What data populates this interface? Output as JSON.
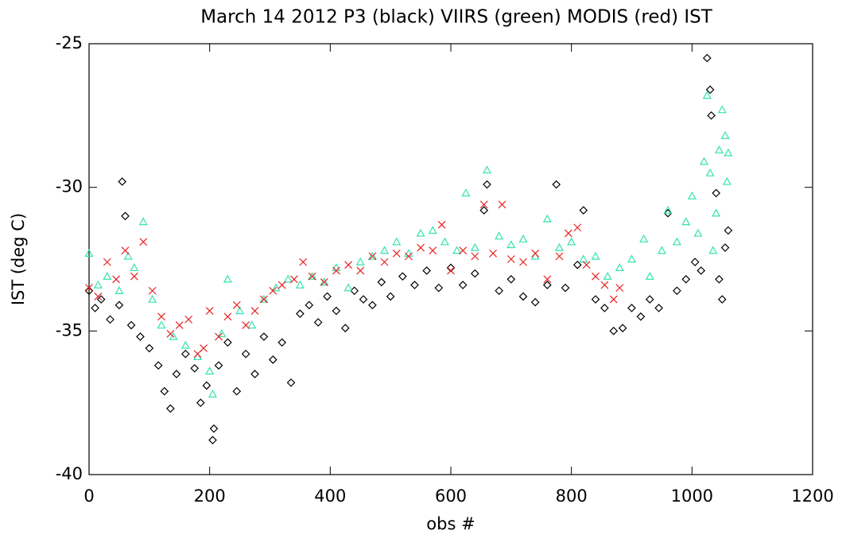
{
  "chart_data": {
    "type": "scatter",
    "title": "March 14 2012 P3 (black)   VIIRS (green)   MODIS (red)   IST",
    "x_label": "obs #",
    "y_label": "IST (deg C)",
    "xlim": [
      0,
      1200
    ],
    "ylim": [
      -40,
      -25
    ],
    "xticks": [
      0,
      200,
      400,
      600,
      800,
      1000,
      1200
    ],
    "yticks": [
      -40,
      -35,
      -30,
      -25
    ],
    "series": [
      {
        "name": "P3",
        "color": "#000000",
        "marker": "diamond",
        "x": [
          0,
          10,
          20,
          35,
          50,
          55,
          60,
          70,
          85,
          100,
          115,
          125,
          135,
          145,
          160,
          175,
          185,
          195,
          205,
          207,
          215,
          230,
          245,
          260,
          275,
          290,
          305,
          320,
          335,
          350,
          365,
          380,
          395,
          410,
          425,
          440,
          455,
          470,
          485,
          500,
          520,
          540,
          560,
          580,
          600,
          620,
          640,
          655,
          660,
          680,
          700,
          720,
          740,
          760,
          775,
          790,
          810,
          820,
          840,
          855,
          870,
          885,
          900,
          915,
          930,
          945,
          960,
          975,
          990,
          1005,
          1015,
          1025,
          1030,
          1032,
          1040,
          1045,
          1050,
          1055,
          1060
        ],
        "values": [
          -33.6,
          -34.2,
          -33.9,
          -34.6,
          -34.1,
          -29.8,
          -31,
          -34.8,
          -35.2,
          -35.6,
          -36.2,
          -37.1,
          -37.7,
          -36.5,
          -35.8,
          -36.3,
          -37.5,
          -36.9,
          -38.8,
          -38.4,
          -36.2,
          -35.4,
          -37.1,
          -35.8,
          -36.5,
          -35.2,
          -36,
          -35.4,
          -36.8,
          -34.4,
          -34.1,
          -34.7,
          -33.8,
          -34.3,
          -34.9,
          -33.6,
          -33.9,
          -34.1,
          -33.3,
          -33.8,
          -33.1,
          -33.4,
          -32.9,
          -33.5,
          -32.8,
          -33.4,
          -33,
          -30.8,
          -29.9,
          -33.6,
          -33.2,
          -33.8,
          -34,
          -33.4,
          -29.9,
          -33.5,
          -32.7,
          -30.8,
          -33.9,
          -34.2,
          -35,
          -34.9,
          -34.2,
          -34.5,
          -33.9,
          -34.2,
          -30.9,
          -33.6,
          -33.2,
          -32.6,
          -32.9,
          -25.5,
          -26.6,
          -27.5,
          -30.2,
          -33.2,
          -33.9,
          -32.1,
          -31.5
        ]
      },
      {
        "name": "VIIRS",
        "color": "#33e3b0",
        "marker": "triangle",
        "x": [
          0,
          15,
          30,
          50,
          65,
          75,
          90,
          105,
          120,
          140,
          160,
          180,
          200,
          205,
          220,
          230,
          250,
          270,
          290,
          310,
          330,
          350,
          370,
          390,
          410,
          430,
          450,
          470,
          490,
          510,
          530,
          550,
          570,
          590,
          610,
          625,
          640,
          660,
          680,
          700,
          720,
          740,
          760,
          780,
          800,
          820,
          840,
          860,
          880,
          900,
          920,
          930,
          950,
          960,
          975,
          990,
          1000,
          1010,
          1020,
          1025,
          1030,
          1035,
          1040,
          1045,
          1050,
          1055,
          1058,
          1060
        ],
        "values": [
          -32.3,
          -33.4,
          -33.1,
          -33.6,
          -32.4,
          -32.8,
          -31.2,
          -33.9,
          -34.8,
          -35.2,
          -35.5,
          -35.9,
          -36.4,
          -37.2,
          -35.1,
          -33.2,
          -34.3,
          -34.8,
          -33.9,
          -33.5,
          -33.2,
          -33.4,
          -33.1,
          -33.3,
          -32.8,
          -33.5,
          -32.6,
          -32.4,
          -32.2,
          -31.9,
          -32.3,
          -31.6,
          -31.5,
          -31.9,
          -32.2,
          -30.2,
          -32.1,
          -29.4,
          -31.7,
          -32,
          -31.8,
          -32.4,
          -31.1,
          -32.1,
          -31.9,
          -32.5,
          -32.4,
          -33.1,
          -32.8,
          -32.5,
          -31.8,
          -33.1,
          -32.2,
          -30.8,
          -31.9,
          -31.2,
          -30.3,
          -31.6,
          -29.1,
          -26.8,
          -29.5,
          -32.2,
          -30.9,
          -28.7,
          -27.3,
          -28.2,
          -29.8,
          -28.8
        ]
      },
      {
        "name": "MODIS",
        "color": "#e82222",
        "marker": "cross",
        "x": [
          0,
          15,
          30,
          45,
          60,
          75,
          90,
          105,
          120,
          135,
          150,
          165,
          180,
          190,
          200,
          215,
          230,
          245,
          260,
          275,
          290,
          305,
          320,
          340,
          355,
          370,
          390,
          410,
          430,
          450,
          470,
          490,
          510,
          530,
          550,
          570,
          585,
          600,
          620,
          640,
          655,
          670,
          685,
          700,
          720,
          740,
          760,
          780,
          795,
          810,
          825,
          840,
          855,
          870,
          880
        ],
        "values": [
          -33.5,
          -33.8,
          -32.6,
          -33.2,
          -32.2,
          -33.1,
          -31.9,
          -33.6,
          -34.5,
          -35.1,
          -34.8,
          -34.6,
          -35.8,
          -35.6,
          -34.3,
          -35.2,
          -34.5,
          -34.1,
          -34.8,
          -34.3,
          -33.9,
          -33.6,
          -33.4,
          -33.2,
          -32.6,
          -33.1,
          -33.3,
          -32.9,
          -32.7,
          -32.9,
          -32.4,
          -32.6,
          -32.3,
          -32.4,
          -32.1,
          -32.2,
          -31.3,
          -32.9,
          -32.2,
          -32.4,
          -30.6,
          -32.3,
          -30.6,
          -32.5,
          -32.6,
          -32.3,
          -33.2,
          -32.4,
          -31.6,
          -31.4,
          -32.7,
          -33.1,
          -33.4,
          -33.9,
          -33.5
        ]
      }
    ]
  }
}
